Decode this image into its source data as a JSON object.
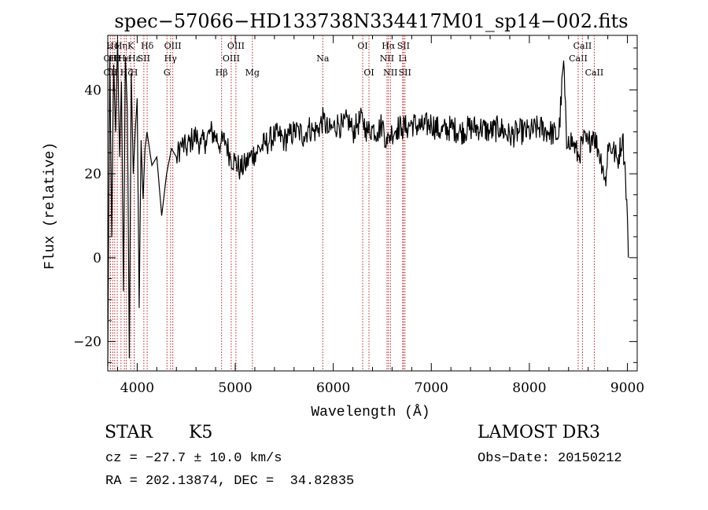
{
  "chart_data": {
    "type": "line",
    "title": "spec−57066−HD133738N334417M01_sp14−002.fits",
    "xlabel": "Wavelength (Å)",
    "ylabel": "Flux (relative)",
    "xlim": [
      3700,
      9100
    ],
    "ylim": [
      -27,
      53
    ],
    "x_ticks": [
      4000,
      5000,
      6000,
      7000,
      8000,
      9000
    ],
    "x_tick_labels": [
      "4000",
      "5000",
      "6000",
      "7000",
      "8000",
      "9000"
    ],
    "y_ticks": [
      -20,
      0,
      20,
      40
    ],
    "y_tick_labels": [
      "−20",
      "0",
      "20",
      "40"
    ],
    "line_color": "#000000",
    "marker_color": "#b22222",
    "series": [
      {
        "name": "flux",
        "x": [
          3700,
          3720,
          3740,
          3760,
          3780,
          3800,
          3820,
          3840,
          3860,
          3880,
          3900,
          3920,
          3940,
          3960,
          3980,
          4000,
          4020,
          4040,
          4060,
          4080,
          4100,
          4150,
          4200,
          4250,
          4300,
          4350,
          4400,
          4450,
          4500,
          4550,
          4600,
          4650,
          4700,
          4750,
          4800,
          4850,
          4900,
          4950,
          5000,
          5050,
          5100,
          5150,
          5200,
          5250,
          5300,
          5350,
          5400,
          5450,
          5500,
          5550,
          5600,
          5650,
          5700,
          5750,
          5800,
          5850,
          5900,
          5950,
          6000,
          6050,
          6100,
          6150,
          6200,
          6250,
          6300,
          6330,
          6350,
          6400,
          6450,
          6500,
          6550,
          6570,
          6600,
          6650,
          6700,
          6750,
          6800,
          6900,
          7000,
          7100,
          7200,
          7300,
          7400,
          7500,
          7600,
          7700,
          7800,
          7900,
          8000,
          8100,
          8200,
          8300,
          8350,
          8380,
          8400,
          8450,
          8500,
          8550,
          8600,
          8650,
          8700,
          8750,
          8780,
          8800,
          8850,
          8900,
          8950,
          8980,
          9000,
          9010
        ],
        "y": [
          -26,
          48,
          5,
          46,
          30,
          52,
          24,
          42,
          -8,
          48,
          35,
          -24,
          44,
          20,
          30,
          38,
          -12,
          28,
          14,
          26,
          30,
          22,
          24,
          10,
          20,
          26,
          24,
          27,
          26,
          28,
          29,
          27,
          28,
          30,
          29,
          27,
          28,
          24,
          23,
          21,
          22,
          24,
          25,
          26,
          27,
          28,
          29,
          29,
          28,
          29,
          30,
          30,
          29,
          31,
          30,
          31,
          33,
          30,
          31,
          32,
          31,
          33,
          30,
          32,
          33,
          31,
          30,
          31,
          30,
          32,
          27,
          29,
          30,
          31,
          31,
          31,
          32,
          31,
          32,
          30,
          31,
          30,
          31,
          31,
          30,
          31,
          29,
          30,
          30,
          31,
          30,
          29,
          47,
          26,
          29,
          27,
          24,
          28,
          27,
          30,
          26,
          22,
          17,
          27,
          26,
          23,
          29,
          20,
          10,
          0
        ]
      }
    ],
    "lines": [
      {
        "wl": 3727,
        "label": "OII",
        "row": 2
      },
      {
        "wl": 3727,
        "label": "OII",
        "row": 3
      },
      {
        "wl": 3751,
        "label": "Ho",
        "row": 1
      },
      {
        "wl": 3771,
        "label": "Hr",
        "row": 2
      },
      {
        "wl": 3797,
        "label": "H",
        "row": 2
      },
      {
        "wl": 3835,
        "label": "Hη",
        "row": 1
      },
      {
        "wl": 3869,
        "label": "He",
        "row": 2
      },
      {
        "wl": 3889,
        "label": "Hζ",
        "row": 3
      },
      {
        "wl": 3934,
        "label": "K",
        "row": 1
      },
      {
        "wl": 3969,
        "label": "H",
        "row": 3
      },
      {
        "wl": 3970,
        "label": "Hε",
        "row": 2
      },
      {
        "wl": 4068,
        "label": "SII",
        "row": 2
      },
      {
        "wl": 4102,
        "label": "Hδ",
        "row": 1
      },
      {
        "wl": 4304,
        "label": "G",
        "row": 3
      },
      {
        "wl": 4340,
        "label": "Hγ",
        "row": 2
      },
      {
        "wl": 4363,
        "label": "OIII",
        "row": 1
      },
      {
        "wl": 4861,
        "label": "Hβ",
        "row": 3
      },
      {
        "wl": 4959,
        "label": "OIII",
        "row": 2
      },
      {
        "wl": 5007,
        "label": "OIII",
        "row": 1
      },
      {
        "wl": 5175,
        "label": "Mg",
        "row": 3
      },
      {
        "wl": 5893,
        "label": "Na",
        "row": 2
      },
      {
        "wl": 6300,
        "label": "OI",
        "row": 1
      },
      {
        "wl": 6364,
        "label": "OI",
        "row": 3
      },
      {
        "wl": 6548,
        "label": "NII",
        "row": 2
      },
      {
        "wl": 6563,
        "label": "Hα",
        "row": 1
      },
      {
        "wl": 6583,
        "label": "NII",
        "row": 3
      },
      {
        "wl": 6708,
        "label": "Li",
        "row": 2
      },
      {
        "wl": 6716,
        "label": "SII",
        "row": 1
      },
      {
        "wl": 6731,
        "label": "SII",
        "row": 3
      },
      {
        "wl": 8498,
        "label": "CaII",
        "row": 2
      },
      {
        "wl": 8542,
        "label": "CaII",
        "row": 1
      },
      {
        "wl": 8662,
        "label": "CaII",
        "row": 3
      }
    ]
  },
  "info": {
    "class": "STAR",
    "subclass": "K5",
    "cz": "cz = −27.7 ± 10.0 km/s",
    "radec": "RA = 202.13874, DEC =  34.82835",
    "survey": "LAMOST DR3",
    "obsdate": "Obs−Date: 20150212"
  }
}
